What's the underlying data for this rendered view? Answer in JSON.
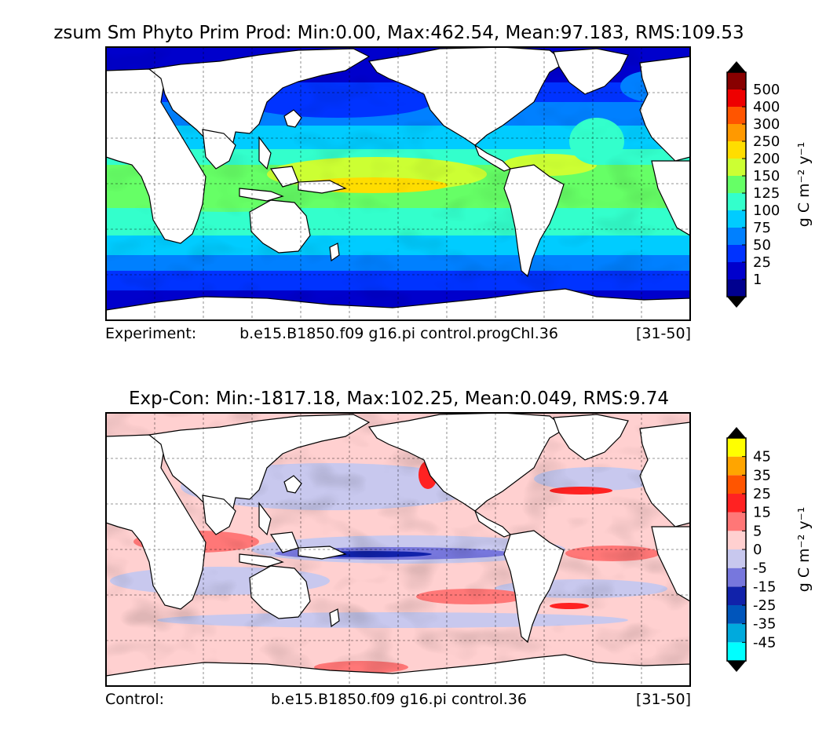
{
  "chart_data": [
    {
      "type": "heatmap",
      "title": "zsum Sm Phyto Prim Prod: Min:0.00, Max:462.54, Mean:97.183, RMS:109.53",
      "footer": {
        "label": "Experiment:",
        "case": "b.e15.B1850.f09 g16.pi control.progChl.36",
        "years": "[31-50]"
      },
      "colorbar": {
        "units": "g C m⁻² y⁻¹",
        "levels": [
          "1",
          "25",
          "50",
          "75",
          "100",
          "125",
          "150",
          "200",
          "250",
          "300",
          "400",
          "500"
        ],
        "colors": [
          "#00008f",
          "#0000cc",
          "#0033ff",
          "#0080ff",
          "#00ccff",
          "#33ffcc",
          "#66ff66",
          "#ccff33",
          "#ffdd00",
          "#ff9900",
          "#ff5500",
          "#ee0000",
          "#880000"
        ],
        "extend": "both"
      },
      "stats": {
        "min": 0.0,
        "max": 462.54,
        "mean": 97.183,
        "rms": 109.53
      }
    },
    {
      "type": "heatmap",
      "title": "Exp-Con: Min:-1817.18, Max:102.25, Mean:0.049, RMS:9.74",
      "footer": {
        "label": "Control:",
        "case": "b.e15.B1850.f09 g16.pi control.36",
        "years": "[31-50]"
      },
      "colorbar": {
        "units": "g C m⁻² y⁻¹",
        "levels": [
          "-45",
          "-35",
          "-25",
          "-15",
          "-5",
          "0",
          "5",
          "15",
          "25",
          "35",
          "45"
        ],
        "colors": [
          "#00ffff",
          "#00aadd",
          "#0055bb",
          "#1122aa",
          "#7777dd",
          "#c8c8ee",
          "#ffd0d0",
          "#ff7777",
          "#ff2222",
          "#ff5500",
          "#ffa500",
          "#ffff00"
        ],
        "extend": "both"
      },
      "stats": {
        "min": -1817.18,
        "max": 102.25,
        "mean": 0.049,
        "rms": 9.74
      }
    }
  ]
}
